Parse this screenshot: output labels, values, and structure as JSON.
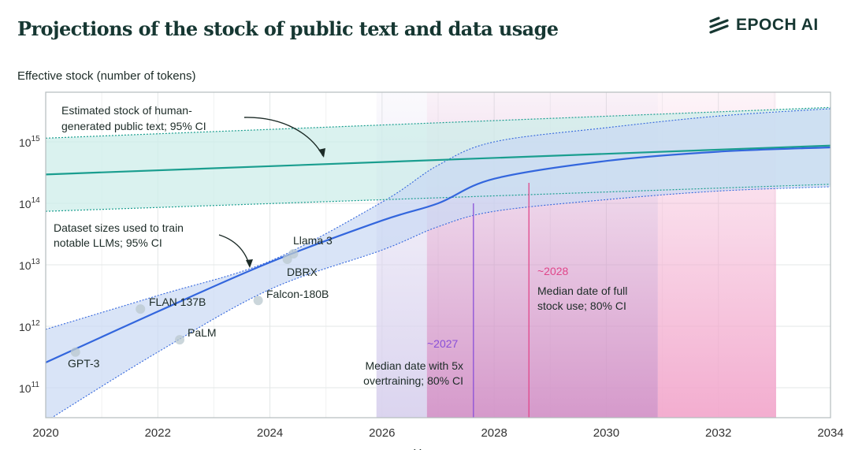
{
  "header": {
    "title": "Projections of the stock of public text and data usage",
    "logo_text": "EPOCH AI",
    "logo_icon": "epoch-stripes-icon"
  },
  "chart_data": {
    "type": "line",
    "title": "Projections of the stock of public text and data usage",
    "ylabel": "Effective stock (number of tokens)",
    "xlabel": "Year",
    "yscale": "log",
    "xlim": [
      2020,
      2034
    ],
    "ylim_log10": [
      10.5,
      15.8
    ],
    "grid": true,
    "x_ticks": [
      "2020",
      "2022",
      "2024",
      "2026",
      "2028",
      "2030",
      "2032",
      "2034"
    ],
    "y_ticks": [
      {
        "exp": "11",
        "log10": 11
      },
      {
        "exp": "12",
        "log10": 12
      },
      {
        "exp": "13",
        "log10": 13
      },
      {
        "exp": "14",
        "log10": 14
      },
      {
        "exp": "15",
        "log10": 15
      }
    ],
    "y_tick_base": "10",
    "colors": {
      "stock": "#1a9e8f",
      "stock_band": "#cdeeea",
      "data": "#3366dd",
      "data_band": "#c9d8f4",
      "overtrain": "#8a4fd8",
      "fullstock": "#e0468a",
      "overtrain_band": "#e6e1f3",
      "fullstock_band": "#f2a9cd"
    },
    "stock": {
      "x": [
        2020,
        2034
      ],
      "median_log10": [
        14.47,
        14.94
      ],
      "upper_log10": [
        15.06,
        15.56
      ],
      "lower_log10": [
        13.87,
        14.31
      ]
    },
    "dataset_sizes": {
      "x": [
        2020,
        2022,
        2024,
        2026,
        2027,
        2028,
        2030,
        2032,
        2034
      ],
      "median_log10": [
        11.41,
        12.24,
        13.04,
        13.72,
        14.0,
        14.4,
        14.69,
        14.84,
        14.91
      ],
      "upper_log10": [
        11.95,
        12.5,
        13.06,
        14.02,
        14.62,
        15.0,
        15.23,
        15.42,
        15.54
      ],
      "lower_log10": [
        10.45,
        11.58,
        12.6,
        13.24,
        13.62,
        13.87,
        14.06,
        14.2,
        14.27
      ]
    },
    "models": [
      {
        "name": "GPT-3",
        "year": 2020.53,
        "log10": 11.58
      },
      {
        "name": "FLAN 137B",
        "year": 2021.69,
        "log10": 12.28
      },
      {
        "name": "PaLM",
        "year": 2022.39,
        "log10": 11.78
      },
      {
        "name": "Falcon-180B",
        "year": 2023.79,
        "log10": 12.42
      },
      {
        "name": "DBRX",
        "year": 2024.31,
        "log10": 13.09
      },
      {
        "name": "Llama 3",
        "year": 2024.42,
        "log10": 13.18
      }
    ],
    "overtraining": {
      "median": 2027.63,
      "ci": [
        2025.9,
        2030.92
      ],
      "label": "~2027",
      "desc": [
        "Median date with 5x",
        "overtraining; 80% CI"
      ]
    },
    "full_stock": {
      "median": 2028.62,
      "ci": [
        2026.8,
        2033.03
      ],
      "label": "~2028",
      "desc": [
        "Median date of full",
        "stock use; 80% CI"
      ]
    },
    "annotations": {
      "stock": [
        "Estimated stock of human-",
        "generated public text; 95% CI"
      ],
      "data": [
        "Dataset sizes used to train",
        "notable LLMs; 95% CI"
      ]
    }
  }
}
